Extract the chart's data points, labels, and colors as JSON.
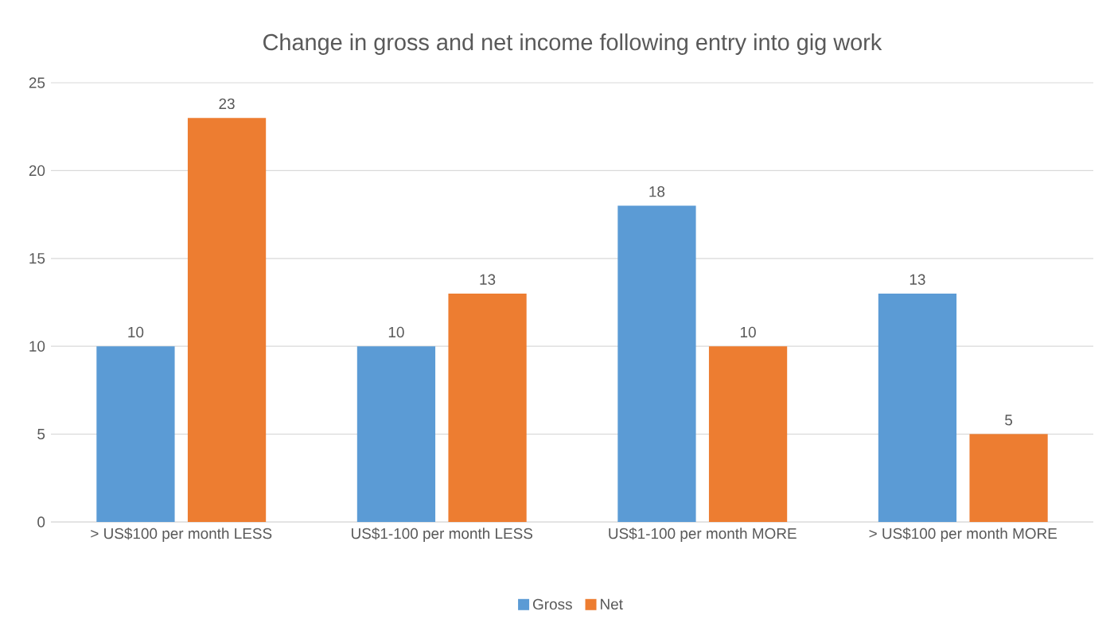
{
  "chart_data": {
    "type": "bar",
    "title": "Change in gross and net income following entry into gig work",
    "categories": [
      "> US$100 per month LESS",
      "US$1-100 per month LESS",
      "US$1-100 per month MORE",
      "> US$100 per month MORE"
    ],
    "series": [
      {
        "name": "Gross",
        "color": "#5b9bd5",
        "values": [
          10,
          10,
          18,
          13
        ]
      },
      {
        "name": "Net",
        "color": "#ed7d31",
        "values": [
          23,
          13,
          10,
          5
        ]
      }
    ],
    "ylim": [
      0,
      25
    ],
    "yticks": [
      0,
      5,
      10,
      15,
      20,
      25
    ],
    "grid": "y",
    "legend": "bottom",
    "data_labels": true
  }
}
